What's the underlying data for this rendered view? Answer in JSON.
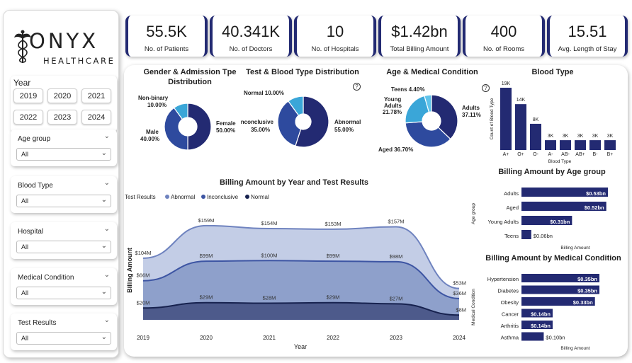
{
  "brand": {
    "name": "ONYX",
    "sub": "HEALTHCARE"
  },
  "filters": {
    "year": {
      "title": "Year",
      "options": [
        "2019",
        "2020",
        "2021",
        "2022",
        "2023",
        "2024"
      ]
    },
    "slicers": [
      {
        "label": "Age group",
        "value": "All"
      },
      {
        "label": "Blood Type",
        "value": "All"
      },
      {
        "label": "Hospital",
        "value": "All"
      },
      {
        "label": "Medical Condition",
        "value": "All"
      },
      {
        "label": "Test Results",
        "value": "All"
      }
    ]
  },
  "kpis": [
    {
      "value": "55.5K",
      "label": "No. of Patients"
    },
    {
      "value": "40.341K",
      "label": "No. of Doctors"
    },
    {
      "value": "10",
      "label": "No. of Hospitals"
    },
    {
      "value": "$1.42bn",
      "label": "Total Billing Amount"
    },
    {
      "value": "400",
      "label": "No. of Rooms"
    },
    {
      "value": "15.51",
      "label": "Avg. Length of Stay"
    }
  ],
  "colors": {
    "navy": "#232a72",
    "mid": "#2e4a9e",
    "light": "#3aa6d8",
    "pale": "#c9d3ea"
  },
  "charts": {
    "gender": {
      "title1": "Gender & Admission Tpe",
      "title2": "Distribution",
      "labels": {
        "nonbinary": "Non-binary",
        "nonbinary_pct": "10.00%",
        "female": "Female",
        "female_pct": "50.00%",
        "male": "Male",
        "male_pct": "40.00%"
      }
    },
    "test": {
      "title": "Test & Blood Type Distribution",
      "labels": {
        "normal": "Normal 10.00%",
        "inconclusive": "Inconclusive",
        "inconclusive_pct": "35.00%",
        "abnormal": "Abnormal",
        "abnormal_pct": "55.00%"
      }
    },
    "age": {
      "title": "Age & Medical Condition",
      "labels": {
        "teens": "Teens 4.40%",
        "young": "Young",
        "young2": "Adults",
        "young_pct": "21.78%",
        "adults": "Adults",
        "adults_pct": "37.11%",
        "aged": "Aged 36.70%"
      }
    },
    "blood_title": "Blood Type",
    "billing_area_title": "Billing Amount by Year and Test Results",
    "age_bar_title": "Billing Amount by Age group",
    "cond_bar_title": "Billing Amount by Medical Condition"
  },
  "chart_data": [
    {
      "type": "pie",
      "title": "Gender & Admission Tpe Distribution",
      "labels": [
        "Female",
        "Male",
        "Non-binary"
      ],
      "values": [
        50.0,
        40.0,
        10.0
      ]
    },
    {
      "type": "pie",
      "title": "Test & Blood Type Distribution",
      "labels": [
        "Abnormal",
        "Inconclusive",
        "Normal"
      ],
      "values": [
        55.0,
        35.0,
        10.0
      ]
    },
    {
      "type": "pie",
      "title": "Age & Medical Condition",
      "labels": [
        "Adults",
        "Aged",
        "Young Adults",
        "Teens"
      ],
      "values": [
        37.11,
        36.7,
        21.78,
        4.4
      ]
    },
    {
      "type": "bar",
      "title": "Blood Type",
      "xlabel": "Blood Type",
      "ylabel": "Count of Blood Type",
      "categories": [
        "A+",
        "O+",
        "O-",
        "A-",
        "AB-",
        "AB+",
        "B-",
        "B+"
      ],
      "values": [
        19,
        14,
        8,
        3,
        3,
        3,
        3,
        3
      ],
      "labels": [
        "19K",
        "14K",
        "8K",
        "3K",
        "3K",
        "3K",
        "3K",
        "3K"
      ]
    },
    {
      "type": "area",
      "title": "Billing Amount by Year and Test Results",
      "xlabel": "Year",
      "ylabel": "Billing Amount",
      "legend_title": "Test Results",
      "x": [
        "2019",
        "2020",
        "2021",
        "2022",
        "2023",
        "2024"
      ],
      "series": [
        {
          "name": "Abnormal",
          "values": [
            104,
            159,
            154,
            153,
            157,
            53
          ],
          "labels": [
            "$104M",
            "$159M",
            "$154M",
            "$153M",
            "$157M",
            "$53M"
          ]
        },
        {
          "name": "Inconclusive",
          "values": [
            66,
            99,
            100,
            99,
            98,
            36
          ],
          "labels": [
            "$66M",
            "$99M",
            "$100M",
            "$99M",
            "$98M",
            "$36M"
          ]
        },
        {
          "name": "Normal",
          "values": [
            20,
            29,
            28,
            29,
            27,
            8
          ],
          "labels": [
            "$20M",
            "$29M",
            "$28M",
            "$29M",
            "$27M",
            "$8M"
          ]
        }
      ]
    },
    {
      "type": "bar",
      "orientation": "horizontal",
      "title": "Billing Amount by Age group",
      "xlabel": "Billing Amount",
      "ylabel": "Age group",
      "categories": [
        "Adults",
        "Aged",
        "Young Adults",
        "Teens"
      ],
      "values": [
        0.53,
        0.52,
        0.31,
        0.06
      ],
      "labels": [
        "$0.53bn",
        "$0.52bn",
        "$0.31bn",
        "$0.06bn"
      ]
    },
    {
      "type": "bar",
      "orientation": "horizontal",
      "title": "Billing Amount by Medical Condition",
      "xlabel": "Billing Amount",
      "ylabel": "Medical Condition",
      "categories": [
        "Hypertension",
        "Diabetes",
        "Obesity",
        "Cancer",
        "Arthritis",
        "Asthma"
      ],
      "values": [
        0.35,
        0.35,
        0.33,
        0.14,
        0.14,
        0.1
      ],
      "labels": [
        "$0.35bn",
        "$0.35bn",
        "$0.33bn",
        "$0.14bn",
        "$0.14bn",
        "$0.10bn"
      ]
    }
  ]
}
